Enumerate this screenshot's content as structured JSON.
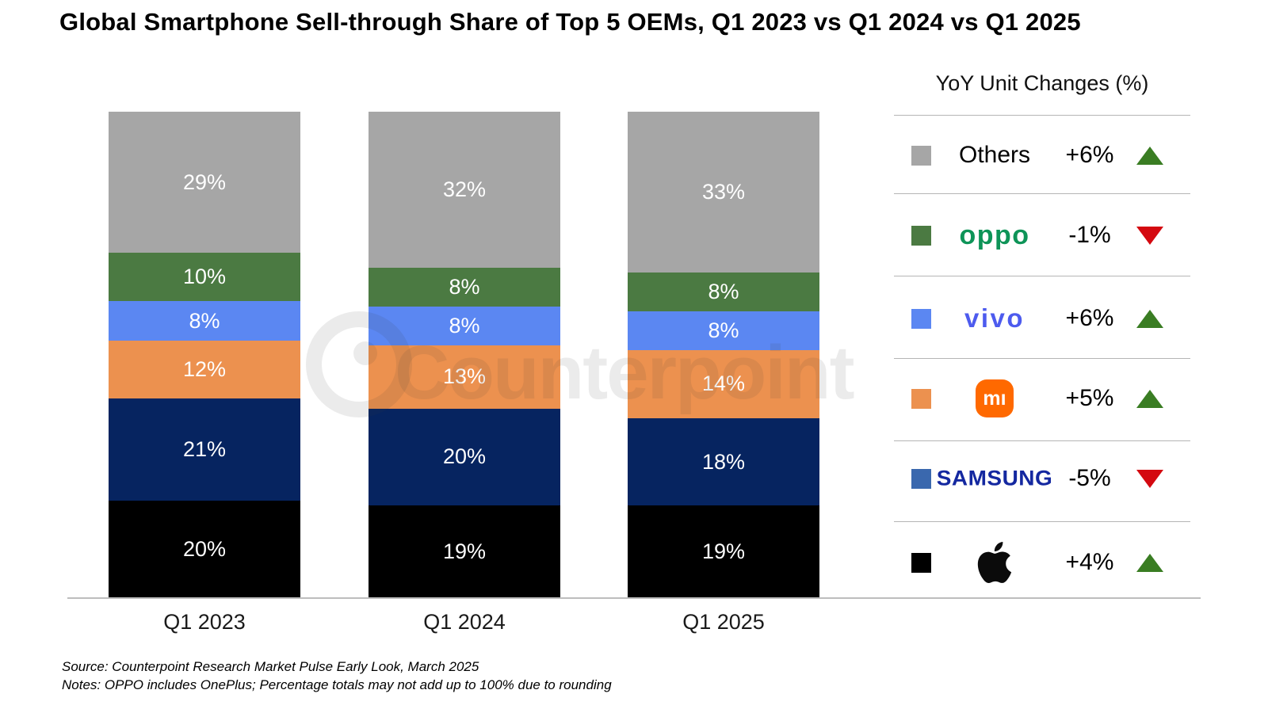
{
  "title": "Global Smartphone Sell-through Share of Top 5 OEMs, Q1 2023 vs Q1 2024 vs Q1 2025",
  "chart_data": {
    "type": "bar",
    "variant": "stacked-100-percent",
    "title": "Global Smartphone Sell-through Share of Top 5 OEMs, Q1 2023 vs Q1 2024 vs Q1 2025",
    "categories": [
      "Q1 2023",
      "Q1 2024",
      "Q1 2025"
    ],
    "series_bottom_to_top": [
      {
        "name": "Apple",
        "color": "#000000",
        "values": [
          20,
          19,
          19
        ]
      },
      {
        "name": "Samsung",
        "color": "#062460",
        "values": [
          21,
          20,
          18
        ]
      },
      {
        "name": "Xiaomi",
        "color": "#ec914f",
        "values": [
          12,
          13,
          14
        ]
      },
      {
        "name": "vivo",
        "color": "#5b87f2",
        "values": [
          8,
          8,
          8
        ]
      },
      {
        "name": "OPPO",
        "color": "#4b7a42",
        "values": [
          10,
          8,
          8
        ]
      },
      {
        "name": "Others",
        "color": "#a6a6a6",
        "values": [
          29,
          32,
          33
        ]
      }
    ],
    "value_suffix": "%",
    "label_color": "#ffffff",
    "ylim": [
      0,
      100
    ],
    "grid": false,
    "legend_position": "right"
  },
  "legend": {
    "header": "YoY Unit Changes (%)",
    "up_color": "#3a7d23",
    "down_color": "#d40910",
    "rows": [
      {
        "name": "Others",
        "swatch": "#a6a6a6",
        "logo_text": "Others",
        "logo_color": "#000000",
        "change": "+6%",
        "direction": "up"
      },
      {
        "name": "OPPO",
        "swatch": "#4b7a42",
        "logo_text": "oppo",
        "logo_color": "#0e9458",
        "change": "-1%",
        "direction": "down"
      },
      {
        "name": "vivo",
        "swatch": "#5b87f2",
        "logo_text": "vivo",
        "logo_color": "#4d5bee",
        "change": "+6%",
        "direction": "up"
      },
      {
        "name": "Xiaomi",
        "swatch": "#ec914f",
        "logo_text": "mı",
        "logo_color": "#ff6900",
        "change": "+5%",
        "direction": "up"
      },
      {
        "name": "Samsung",
        "swatch": "#3a68ae",
        "logo_text": "SAMSUNG",
        "logo_color": "#1428a0",
        "change": "-5%",
        "direction": "down"
      },
      {
        "name": "Apple",
        "swatch": "#000000",
        "logo_text": "",
        "logo_color": "#0b0b0b",
        "change": "+4%",
        "direction": "up"
      }
    ]
  },
  "watermark": {
    "text": "Counterpoint"
  },
  "footer": {
    "source": "Source: Counterpoint Research Market Pulse Early Look, March 2025",
    "notes": "Notes: OPPO includes OnePlus; Percentage totals may not add up to 100% due to rounding"
  }
}
